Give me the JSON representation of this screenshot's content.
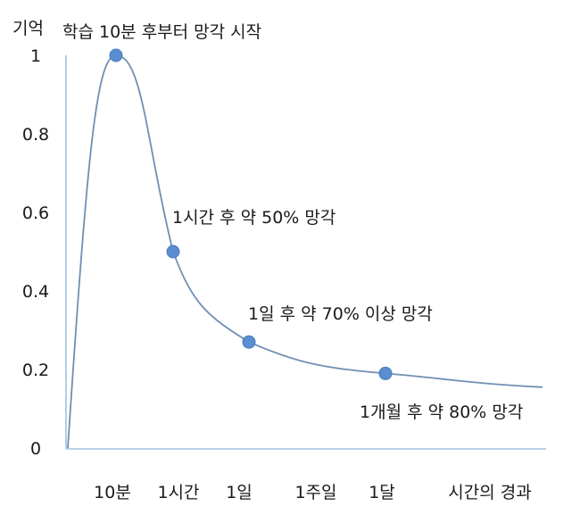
{
  "chart_data": {
    "type": "line",
    "ylabel": "기억",
    "yticks": [
      "1",
      "0.8",
      "0.6",
      "0.4",
      "0.2",
      "0"
    ],
    "ylim": [
      0,
      1
    ],
    "categories": [
      "10분",
      "1시간",
      "1일",
      "1주일",
      "1달",
      "시간의 경과"
    ],
    "markers": [
      {
        "x": "10분",
        "y": 1.0
      },
      {
        "x": "1시간",
        "y": 0.5
      },
      {
        "x": "1일",
        "y": 0.27
      },
      {
        "x": "1달",
        "y": 0.19
      }
    ],
    "curve_end": {
      "x": "시간의 경과",
      "y": 0.155
    },
    "annotations": [
      "학습 10분 후부터 망각 시작",
      "1시간 후 약 50% 망각",
      "1일 후 약 70% 이상 망각",
      "1개월 후 약 80% 망각"
    ],
    "line_color": "#6f8fb4",
    "marker_color": "#5b8ed0",
    "axis_color": "#9dc3e6",
    "grid": false,
    "legend": "none"
  }
}
